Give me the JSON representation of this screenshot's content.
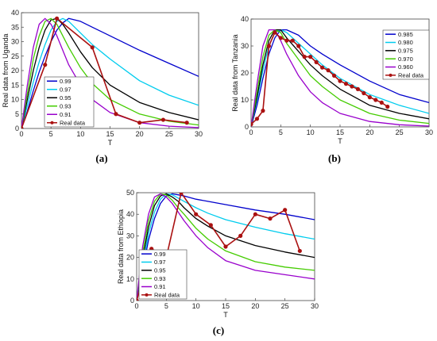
{
  "chart_data": [
    {
      "type": "line",
      "panel_label": "(a)",
      "xlabel": "T",
      "ylabel": "Real data from Uganda",
      "xlim": [
        0,
        30
      ],
      "ylim": [
        0,
        40
      ],
      "xticks": [
        0,
        5,
        10,
        15,
        20,
        25,
        30
      ],
      "yticks": [
        0,
        5,
        10,
        15,
        20,
        25,
        30,
        35,
        40
      ],
      "legend_position": "lower-left",
      "series": [
        {
          "name": "0.99",
          "color": "#0000cc",
          "x": [
            0,
            1,
            2,
            3,
            4,
            5,
            6,
            7,
            8,
            10,
            12,
            15,
            20,
            25,
            30
          ],
          "y": [
            0,
            6,
            13,
            19.5,
            25,
            30,
            34,
            36.5,
            38,
            37,
            35,
            32,
            27,
            22.5,
            18
          ]
        },
        {
          "name": "0.97",
          "color": "#00ccee",
          "x": [
            0,
            1,
            2,
            3,
            4,
            5,
            6,
            7,
            8,
            10,
            12,
            15,
            20,
            25,
            30
          ],
          "y": [
            0,
            8,
            16,
            23,
            29,
            34,
            37,
            38,
            37,
            33,
            29,
            24,
            16.5,
            11.5,
            8
          ]
        },
        {
          "name": "0.95",
          "color": "#000000",
          "x": [
            0,
            1,
            2,
            3,
            4,
            5,
            6,
            7,
            8,
            10,
            12,
            15,
            20,
            25,
            30
          ],
          "y": [
            0,
            10,
            20,
            28,
            34,
            37.5,
            38,
            36,
            33,
            26.5,
            21,
            15,
            9,
            5.5,
            3
          ]
        },
        {
          "name": "0.93",
          "color": "#44cc00",
          "x": [
            0,
            1,
            2,
            3,
            4,
            5,
            6,
            7,
            8,
            10,
            12,
            15,
            20,
            25,
            30
          ],
          "y": [
            0,
            12,
            24,
            32,
            37,
            38,
            36,
            32,
            28,
            21,
            15.5,
            10,
            5,
            2.5,
            1.2
          ]
        },
        {
          "name": "0.91",
          "color": "#9900cc",
          "x": [
            0,
            1,
            2,
            3,
            4,
            5,
            6,
            7,
            8,
            10,
            12,
            15,
            20,
            25,
            30
          ],
          "y": [
            0,
            15,
            28,
            36,
            38,
            36,
            32,
            27,
            22,
            15,
            10,
            5.5,
            2,
            0.8,
            0.3
          ]
        },
        {
          "name": "Real data",
          "color": "#aa1111",
          "marker": "circle",
          "x": [
            0,
            4,
            6,
            12,
            16,
            20,
            24,
            28
          ],
          "y": [
            0,
            22,
            38,
            28,
            5,
            2,
            3,
            2
          ]
        }
      ]
    },
    {
      "type": "line",
      "panel_label": "(b)",
      "xlabel": "T",
      "ylabel": "Real data from Tanzania",
      "xlim": [
        0,
        30
      ],
      "ylim": [
        0,
        40
      ],
      "xticks": [
        0,
        5,
        10,
        15,
        20,
        25,
        30
      ],
      "yticks": [
        0,
        10,
        20,
        30,
        40
      ],
      "legend_position": "top-right",
      "series": [
        {
          "name": "0.985",
          "color": "#0000cc",
          "x": [
            0,
            1,
            2,
            3,
            4,
            5,
            6,
            8,
            10,
            12,
            15,
            20,
            25,
            30
          ],
          "y": [
            0,
            8,
            18,
            27,
            33,
            36,
            36,
            34,
            30,
            27,
            23,
            17,
            12,
            9
          ]
        },
        {
          "name": "0.980",
          "color": "#00ccee",
          "x": [
            0,
            1,
            2,
            3,
            4,
            5,
            6,
            8,
            10,
            12,
            15,
            20,
            25,
            30
          ],
          "y": [
            0,
            10,
            21,
            30,
            35,
            36,
            35,
            31,
            27,
            23,
            18,
            12,
            8,
            5
          ]
        },
        {
          "name": "0.975",
          "color": "#000000",
          "x": [
            0,
            1,
            2,
            3,
            4,
            5,
            6,
            8,
            10,
            12,
            15,
            20,
            25,
            30
          ],
          "y": [
            0,
            11,
            23,
            32,
            36,
            36,
            33,
            28,
            23,
            19,
            14,
            8,
            5,
            3
          ]
        },
        {
          "name": "0.970",
          "color": "#44cc00",
          "x": [
            0,
            1,
            2,
            3,
            4,
            5,
            6,
            8,
            10,
            12,
            15,
            20,
            25,
            30
          ],
          "y": [
            0,
            13,
            26,
            34,
            36,
            35,
            31,
            25,
            19,
            15,
            10,
            5,
            2.5,
            1.3
          ]
        },
        {
          "name": "0.960",
          "color": "#9900cc",
          "x": [
            0,
            1,
            2,
            3,
            4,
            5,
            6,
            8,
            10,
            12,
            15,
            20,
            25,
            30
          ],
          "y": [
            0,
            16,
            30,
            36,
            36,
            32,
            27,
            19,
            13,
            9,
            5,
            2,
            0.8,
            0.3
          ]
        },
        {
          "name": "Real data",
          "color": "#aa1111",
          "marker": "circle",
          "x": [
            0,
            1,
            2,
            3,
            4,
            5,
            6,
            7,
            8,
            9,
            10,
            11,
            12,
            13,
            14,
            15,
            16,
            17,
            18,
            19,
            20,
            21,
            22,
            23
          ],
          "y": [
            1,
            3,
            6,
            30,
            35,
            33,
            32,
            32,
            30,
            26,
            26,
            24,
            22,
            21,
            19,
            17,
            16,
            15,
            14,
            12.5,
            11,
            10,
            9,
            7.5
          ]
        }
      ]
    },
    {
      "type": "line",
      "panel_label": "(c)",
      "xlabel": "T",
      "ylabel": "Real data from Ethiopia",
      "xlim": [
        0,
        30
      ],
      "ylim": [
        0,
        50
      ],
      "xticks": [
        0,
        5,
        10,
        15,
        20,
        25,
        30
      ],
      "yticks": [
        0,
        10,
        20,
        30,
        40,
        50
      ],
      "legend_position": "lower-left",
      "series": [
        {
          "name": "0.99",
          "color": "#0000cc",
          "x": [
            0,
            1,
            2,
            3,
            4,
            5,
            6,
            7,
            8,
            10,
            12,
            15,
            20,
            25,
            30
          ],
          "y": [
            0,
            14,
            28,
            38,
            45,
            48.5,
            49.5,
            49,
            48.5,
            47,
            46,
            44.5,
            42,
            40,
            37.5
          ]
        },
        {
          "name": "0.97",
          "color": "#00ccee",
          "x": [
            0,
            1,
            2,
            3,
            4,
            5,
            6,
            7,
            8,
            10,
            12,
            15,
            20,
            25,
            30
          ],
          "y": [
            0,
            16,
            31,
            41,
            47,
            49.5,
            49,
            47.5,
            46,
            43,
            40.5,
            37.5,
            34,
            31,
            28.5
          ]
        },
        {
          "name": "0.95",
          "color": "#000000",
          "x": [
            0,
            1,
            2,
            3,
            4,
            5,
            6,
            7,
            8,
            10,
            12,
            15,
            20,
            25,
            30
          ],
          "y": [
            0,
            19,
            34,
            44,
            48.5,
            49.5,
            48,
            46,
            43,
            38,
            34.5,
            30,
            25.5,
            22.5,
            20
          ]
        },
        {
          "name": "0.93",
          "color": "#44cc00",
          "x": [
            0,
            1,
            2,
            3,
            4,
            5,
            6,
            7,
            8,
            10,
            12,
            15,
            20,
            25,
            30
          ],
          "y": [
            0,
            22,
            37,
            46,
            49.5,
            49,
            46.5,
            43,
            40,
            33.5,
            28.5,
            23,
            18,
            15.5,
            14
          ]
        },
        {
          "name": "0.91",
          "color": "#9900cc",
          "x": [
            0,
            1,
            2,
            3,
            4,
            5,
            6,
            7,
            8,
            10,
            12,
            15,
            20,
            25,
            30
          ],
          "y": [
            0,
            25,
            40,
            48,
            49.5,
            48,
            45,
            41,
            37,
            30,
            24.5,
            18.5,
            14,
            12,
            10
          ]
        },
        {
          "name": "Real data",
          "color": "#aa1111",
          "marker": "circle",
          "x": [
            0,
            2.5,
            5,
            7.5,
            10,
            12.5,
            15,
            17.5,
            20,
            22.5,
            25,
            27.5
          ],
          "y": [
            0,
            24,
            20,
            50,
            40,
            35,
            25,
            30,
            40,
            38,
            42,
            23
          ]
        }
      ]
    }
  ]
}
